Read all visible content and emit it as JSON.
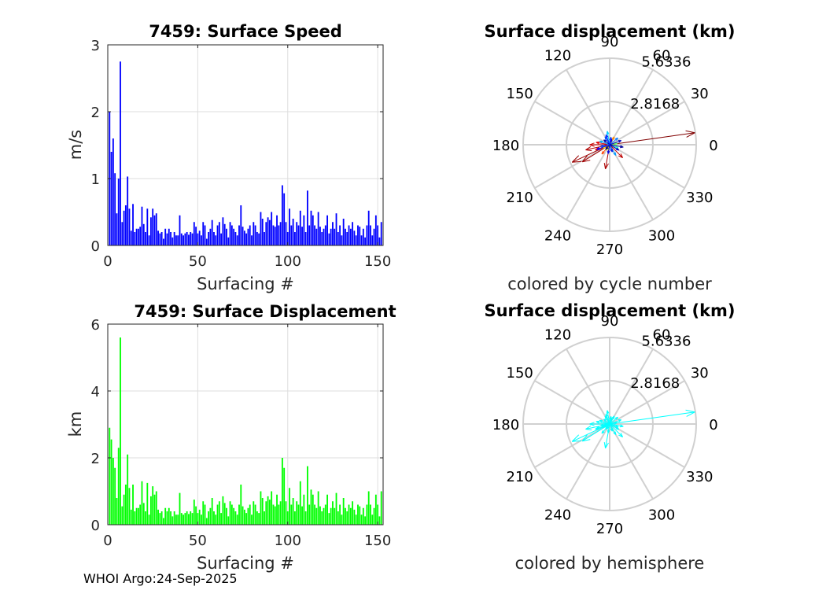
{
  "footer": "WHOI Argo:24-Sep-2025",
  "chart_data": [
    {
      "id": "speed",
      "type": "bar",
      "title": "7459: Surface Speed",
      "xlabel": "Surfacing #",
      "ylabel": "m/s",
      "xlim": [
        0,
        153
      ],
      "ylim": [
        0,
        3
      ],
      "xticks": [
        0,
        50,
        100,
        150
      ],
      "yticks": [
        0,
        1,
        2,
        3
      ],
      "grid": true,
      "color": "#0000ff",
      "x": [
        1,
        2,
        3,
        4,
        5,
        6,
        7,
        8,
        9,
        10,
        11,
        12,
        13,
        14,
        15,
        16,
        17,
        18,
        19,
        20,
        21,
        22,
        23,
        24,
        25,
        26,
        27,
        28,
        29,
        30,
        31,
        32,
        33,
        34,
        35,
        36,
        37,
        38,
        39,
        40,
        41,
        42,
        43,
        44,
        45,
        46,
        47,
        48,
        49,
        50,
        51,
        52,
        53,
        54,
        55,
        56,
        57,
        58,
        59,
        60,
        61,
        62,
        63,
        64,
        65,
        66,
        67,
        68,
        69,
        70,
        71,
        72,
        73,
        74,
        75,
        76,
        77,
        78,
        79,
        80,
        81,
        82,
        83,
        84,
        85,
        86,
        87,
        88,
        89,
        90,
        91,
        92,
        93,
        94,
        95,
        96,
        97,
        98,
        99,
        100,
        101,
        102,
        103,
        104,
        105,
        106,
        107,
        108,
        109,
        110,
        111,
        112,
        113,
        114,
        115,
        116,
        117,
        118,
        119,
        120,
        121,
        122,
        123,
        124,
        125,
        126,
        127,
        128,
        129,
        130,
        131,
        132,
        133,
        134,
        135,
        136,
        137,
        138,
        139,
        140,
        141,
        142,
        143,
        144,
        145,
        146,
        147,
        148,
        149,
        150,
        151,
        152
      ],
      "values": [
        2.0,
        1.4,
        1.6,
        1.08,
        0.48,
        1.0,
        2.75,
        0.35,
        0.52,
        0.6,
        1.03,
        0.55,
        0.22,
        0.62,
        0.2,
        0.25,
        0.25,
        0.28,
        0.58,
        0.32,
        0.2,
        0.55,
        0.15,
        0.42,
        0.55,
        0.45,
        0.48,
        0.22,
        0.18,
        0.2,
        0.1,
        0.25,
        0.18,
        0.25,
        0.2,
        0.12,
        0.2,
        0.15,
        0.15,
        0.45,
        0.18,
        0.15,
        0.18,
        0.2,
        0.16,
        0.2,
        0.18,
        0.35,
        0.28,
        0.18,
        0.22,
        0.15,
        0.35,
        0.3,
        0.1,
        0.2,
        0.25,
        0.38,
        0.2,
        0.15,
        0.3,
        0.35,
        0.18,
        0.42,
        0.32,
        0.25,
        0.12,
        0.35,
        0.3,
        0.25,
        0.2,
        0.15,
        0.3,
        0.6,
        0.28,
        0.22,
        0.18,
        0.25,
        0.3,
        0.15,
        0.35,
        0.3,
        0.2,
        0.18,
        0.5,
        0.4,
        0.2,
        0.35,
        0.42,
        0.38,
        0.5,
        0.3,
        0.28,
        0.45,
        0.3,
        0.35,
        0.9,
        0.78,
        0.35,
        0.2,
        0.55,
        0.3,
        0.4,
        0.2,
        0.35,
        0.3,
        0.52,
        0.28,
        0.45,
        0.2,
        0.82,
        0.3,
        0.52,
        0.45,
        0.3,
        0.25,
        0.5,
        0.28,
        0.2,
        0.25,
        0.3,
        0.45,
        0.18,
        0.25,
        0.35,
        0.25,
        0.48,
        0.2,
        0.3,
        0.15,
        0.4,
        0.25,
        0.2,
        0.3,
        0.25,
        0.35,
        0.22,
        0.15,
        0.3,
        0.28,
        0.15,
        0.25,
        0.12,
        0.3,
        0.52,
        0.3,
        0.15,
        0.25,
        0.45,
        0.3,
        0.12,
        0.35
      ]
    },
    {
      "id": "displacement",
      "type": "bar",
      "title": "7459: Surface Displacement",
      "xlabel": "Surfacing #",
      "ylabel": "km",
      "xlim": [
        0,
        153
      ],
      "ylim": [
        0,
        6
      ],
      "xticks": [
        0,
        50,
        100,
        150
      ],
      "yticks": [
        0,
        2,
        4,
        6
      ],
      "grid": true,
      "color": "#00ff00",
      "x": [
        1,
        2,
        3,
        4,
        5,
        6,
        7,
        8,
        9,
        10,
        11,
        12,
        13,
        14,
        15,
        16,
        17,
        18,
        19,
        20,
        21,
        22,
        23,
        24,
        25,
        26,
        27,
        28,
        29,
        30,
        31,
        32,
        33,
        34,
        35,
        36,
        37,
        38,
        39,
        40,
        41,
        42,
        43,
        44,
        45,
        46,
        47,
        48,
        49,
        50,
        51,
        52,
        53,
        54,
        55,
        56,
        57,
        58,
        59,
        60,
        61,
        62,
        63,
        64,
        65,
        66,
        67,
        68,
        69,
        70,
        71,
        72,
        73,
        74,
        75,
        76,
        77,
        78,
        79,
        80,
        81,
        82,
        83,
        84,
        85,
        86,
        87,
        88,
        89,
        90,
        91,
        92,
        93,
        94,
        95,
        96,
        97,
        98,
        99,
        100,
        101,
        102,
        103,
        104,
        105,
        106,
        107,
        108,
        109,
        110,
        111,
        112,
        113,
        114,
        115,
        116,
        117,
        118,
        119,
        120,
        121,
        122,
        123,
        124,
        125,
        126,
        127,
        128,
        129,
        130,
        131,
        132,
        133,
        134,
        135,
        136,
        137,
        138,
        139,
        140,
        141,
        142,
        143,
        144,
        145,
        146,
        147,
        148,
        149,
        150,
        151,
        152
      ],
      "values": [
        2.9,
        2.55,
        2.0,
        1.7,
        0.8,
        2.3,
        5.6,
        0.55,
        0.9,
        1.2,
        2.1,
        1.1,
        0.45,
        1.2,
        0.4,
        0.5,
        0.5,
        0.6,
        1.3,
        0.65,
        0.4,
        1.25,
        0.3,
        0.85,
        1.15,
        0.9,
        1.0,
        0.45,
        0.35,
        0.4,
        0.2,
        0.5,
        0.4,
        0.5,
        0.4,
        0.25,
        0.4,
        0.3,
        0.3,
        0.95,
        0.35,
        0.3,
        0.35,
        0.4,
        0.32,
        0.4,
        0.35,
        0.75,
        0.55,
        0.35,
        0.45,
        0.3,
        0.7,
        0.6,
        0.2,
        0.4,
        0.5,
        0.8,
        0.4,
        0.3,
        0.6,
        0.7,
        0.35,
        0.85,
        0.65,
        0.5,
        0.25,
        0.7,
        0.6,
        0.5,
        0.4,
        0.3,
        0.6,
        1.2,
        0.55,
        0.45,
        0.35,
        0.5,
        0.6,
        0.3,
        0.7,
        0.6,
        0.4,
        0.35,
        1.0,
        0.8,
        0.4,
        0.7,
        0.85,
        0.75,
        1.0,
        0.6,
        0.55,
        0.9,
        0.6,
        0.7,
        2.0,
        1.7,
        0.7,
        0.4,
        1.1,
        0.6,
        0.8,
        0.4,
        0.7,
        0.6,
        1.3,
        0.55,
        0.9,
        0.4,
        1.75,
        0.6,
        1.05,
        0.9,
        0.6,
        0.5,
        1.0,
        0.55,
        0.4,
        0.5,
        0.6,
        0.9,
        0.35,
        0.5,
        0.7,
        0.5,
        0.95,
        0.4,
        0.6,
        0.3,
        0.8,
        0.5,
        0.4,
        0.6,
        0.5,
        0.7,
        0.45,
        0.3,
        0.6,
        0.55,
        0.3,
        0.5,
        0.25,
        0.6,
        1.0,
        0.6,
        0.3,
        0.5,
        0.9,
        0.6,
        0.25,
        1.0
      ]
    },
    {
      "id": "polar-cycle",
      "type": "polar-quiver",
      "title": "Surface displacement (km)",
      "caption": "colored by cycle number",
      "rmax": 5.6336,
      "rticks": [
        2.8168,
        5.6336
      ],
      "rtick_labels": [
        "2.8168",
        "5.6336"
      ],
      "angle_ticks": [
        0,
        30,
        60,
        90,
        120,
        150,
        180,
        210,
        240,
        270,
        300,
        330
      ],
      "color_by": "cycle",
      "vectors": [
        {
          "angle": 8,
          "r": 5.6,
          "color": "#800000"
        },
        {
          "angle": 205,
          "r": 2.7,
          "color": "#990000"
        },
        {
          "angle": 212,
          "r": 2.1,
          "color": "#a00000"
        },
        {
          "angle": 192,
          "r": 1.6,
          "color": "#b00000"
        },
        {
          "angle": 180,
          "r": 1.3,
          "color": "#cc0000"
        },
        {
          "angle": 260,
          "r": 1.6,
          "color": "#aa0000"
        },
        {
          "angle": 315,
          "r": 1.2,
          "color": "#bb0000"
        },
        {
          "angle": 200,
          "r": 1.0,
          "color": "#ff0000"
        },
        {
          "angle": 170,
          "r": 0.9,
          "color": "#dd0000"
        },
        {
          "angle": 230,
          "r": 0.8,
          "color": "#ff4400"
        },
        {
          "angle": 60,
          "r": 0.6,
          "color": "#ff8800"
        },
        {
          "angle": 205,
          "r": 0.5,
          "color": "#ffdd00"
        },
        {
          "angle": 240,
          "r": 0.4,
          "color": "#ccff00"
        },
        {
          "angle": 10,
          "r": 0.5,
          "color": "#66ff66"
        },
        {
          "angle": 340,
          "r": 0.6,
          "color": "#33ffcc"
        },
        {
          "angle": 100,
          "r": 0.9,
          "color": "#00ccff"
        },
        {
          "angle": 160,
          "r": 0.7,
          "color": "#00aaff"
        },
        {
          "angle": 300,
          "r": 0.8,
          "color": "#0099ff"
        },
        {
          "angle": 40,
          "r": 0.7,
          "color": "#0077ff"
        },
        {
          "angle": 120,
          "r": 0.6,
          "color": "#0055ff"
        },
        {
          "angle": 80,
          "r": 0.5,
          "color": "#0033ff"
        },
        {
          "angle": 200,
          "r": 0.9,
          "color": "#0000ff"
        },
        {
          "angle": 260,
          "r": 0.6,
          "color": "#0000dd"
        },
        {
          "angle": 330,
          "r": 0.7,
          "color": "#0000cc"
        },
        {
          "angle": 20,
          "r": 0.8,
          "color": "#0000bb"
        },
        {
          "angle": 140,
          "r": 0.5,
          "color": "#0000aa"
        },
        {
          "angle": 350,
          "r": 0.9,
          "color": "#000099"
        },
        {
          "angle": 230,
          "r": 0.4,
          "color": "#000088"
        },
        {
          "angle": 110,
          "r": 0.7,
          "color": "#0022ff"
        },
        {
          "angle": 290,
          "r": 0.5,
          "color": "#0011ee"
        },
        {
          "angle": 190,
          "r": 0.6,
          "color": "#0044ff"
        },
        {
          "angle": 70,
          "r": 0.4,
          "color": "#0000ee"
        }
      ]
    },
    {
      "id": "polar-hemisphere",
      "type": "polar-quiver",
      "title": "Surface displacement (km)",
      "caption": "colored by hemisphere",
      "rmax": 5.6336,
      "rticks": [
        2.8168,
        5.6336
      ],
      "rtick_labels": [
        "2.8168",
        "5.6336"
      ],
      "angle_ticks": [
        0,
        30,
        60,
        90,
        120,
        150,
        180,
        210,
        240,
        270,
        300,
        330
      ],
      "color_by": "hemisphere",
      "color": "#00ffff",
      "vectors": [
        {
          "angle": 8,
          "r": 5.6
        },
        {
          "angle": 205,
          "r": 2.7
        },
        {
          "angle": 212,
          "r": 2.1
        },
        {
          "angle": 192,
          "r": 1.6
        },
        {
          "angle": 180,
          "r": 1.3
        },
        {
          "angle": 260,
          "r": 1.6
        },
        {
          "angle": 315,
          "r": 1.2
        },
        {
          "angle": 200,
          "r": 1.0
        },
        {
          "angle": 170,
          "r": 0.9
        },
        {
          "angle": 230,
          "r": 0.8
        },
        {
          "angle": 60,
          "r": 0.6
        },
        {
          "angle": 205,
          "r": 0.5
        },
        {
          "angle": 240,
          "r": 0.4
        },
        {
          "angle": 10,
          "r": 0.5
        },
        {
          "angle": 340,
          "r": 0.6
        },
        {
          "angle": 100,
          "r": 0.9
        },
        {
          "angle": 160,
          "r": 0.7
        },
        {
          "angle": 300,
          "r": 0.8
        },
        {
          "angle": 40,
          "r": 0.7
        },
        {
          "angle": 120,
          "r": 0.6
        },
        {
          "angle": 80,
          "r": 0.5
        },
        {
          "angle": 200,
          "r": 0.9
        },
        {
          "angle": 260,
          "r": 0.6
        },
        {
          "angle": 330,
          "r": 0.7
        },
        {
          "angle": 20,
          "r": 0.8
        },
        {
          "angle": 140,
          "r": 0.5
        },
        {
          "angle": 350,
          "r": 0.9
        },
        {
          "angle": 230,
          "r": 0.4
        },
        {
          "angle": 110,
          "r": 0.7
        },
        {
          "angle": 290,
          "r": 0.5
        },
        {
          "angle": 190,
          "r": 0.6
        },
        {
          "angle": 70,
          "r": 0.4
        }
      ]
    }
  ]
}
